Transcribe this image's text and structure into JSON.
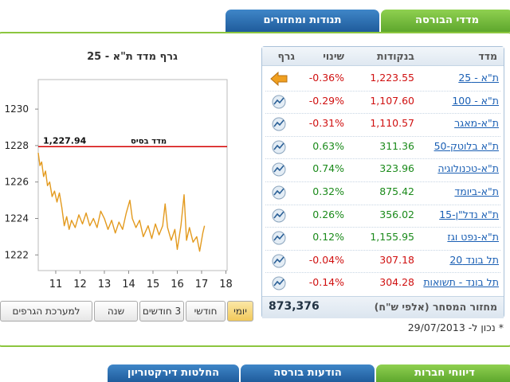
{
  "tabs_top": [
    "מדדי הבורסה",
    "תנודות ומחזורים"
  ],
  "table": {
    "headers": [
      "מדד",
      "בנקודות",
      "שינוי",
      "גרף"
    ],
    "rows": [
      [
        "ת\"א - 25",
        "1,223.55",
        "-0.36%"
      ],
      [
        "ת\"א - 100",
        "1,107.60",
        "-0.29%"
      ],
      [
        "ת\"א-מאגר",
        "1,110.57",
        "-0.31%"
      ],
      [
        "ת\"א בלוטק-50",
        "311.36",
        "0.63%"
      ],
      [
        "ת\"א-טכנולוגיה",
        "323.96",
        "0.74%"
      ],
      [
        "ת\"א-ביומד",
        "875.42",
        "0.32%"
      ],
      [
        "ת\"א נדל\"ן-15",
        "356.02",
        "0.26%"
      ],
      [
        "ת\"א-נפט וגז",
        "1,155.95",
        "0.12%"
      ],
      [
        "תל בונד 20",
        "307.18",
        "-0.04%"
      ],
      [
        "תל בונד - תשואות",
        "304.28",
        "-0.14%"
      ]
    ],
    "footer_label": "מחזור המסחר (אלפי ש\"ח)",
    "footer_value": "873,376"
  },
  "footnote": "* נכון ל- 29/07/2013",
  "chart_data": {
    "type": "line",
    "title": "גרף מדד ת\"א - 25",
    "color": "#e39a1e",
    "x": [
      10.28,
      10.35,
      10.42,
      10.5,
      10.58,
      10.66,
      10.75,
      10.85,
      10.95,
      11.05,
      11.15,
      11.25,
      11.35,
      11.45,
      11.55,
      11.65,
      11.8,
      11.95,
      12.1,
      12.25,
      12.4,
      12.55,
      12.7,
      12.85,
      13.0,
      13.15,
      13.3,
      13.45,
      13.6,
      13.75,
      13.9,
      14.05,
      14.15,
      14.3,
      14.45,
      14.6,
      14.8,
      14.95,
      15.1,
      15.25,
      15.4,
      15.5,
      15.6,
      15.75,
      15.9,
      16.0,
      16.15,
      16.28,
      16.38,
      16.5,
      16.65,
      16.8,
      16.92,
      17.05,
      17.12
    ],
    "values": [
      1227.6,
      1226.9,
      1227.1,
      1226.3,
      1226.6,
      1225.8,
      1226.0,
      1225.2,
      1225.5,
      1224.9,
      1225.4,
      1224.6,
      1223.6,
      1224.1,
      1223.4,
      1223.9,
      1223.5,
      1224.2,
      1223.7,
      1224.3,
      1223.6,
      1224.0,
      1223.5,
      1224.4,
      1224.0,
      1223.4,
      1223.9,
      1223.2,
      1223.8,
      1223.4,
      1224.3,
      1225.0,
      1224.0,
      1223.5,
      1223.9,
      1223.0,
      1223.6,
      1222.9,
      1223.7,
      1223.1,
      1223.6,
      1224.8,
      1223.5,
      1222.8,
      1223.4,
      1222.3,
      1223.6,
      1225.3,
      1222.8,
      1223.5,
      1222.7,
      1223.0,
      1222.2,
      1223.2,
      1223.6
    ],
    "xlim": [
      10.28,
      18.05
    ],
    "ylim": [
      1221.14,
      1231.62
    ],
    "xticks": [
      11,
      12,
      13,
      14,
      15,
      16,
      17,
      18
    ],
    "yticks": [
      1222,
      1224,
      1226,
      1228,
      1230
    ],
    "baseline": {
      "label": "מדד בסיס",
      "value": 1227.94,
      "value_label": "1,227.94",
      "color": "#d40000"
    }
  },
  "range_buttons": [
    "יומי",
    "חודשי",
    "3 חודשים",
    "שנה",
    "למערכת הגרפים"
  ],
  "tabs_bottom": [
    "דיווחי חברות",
    "הודעות בורסה",
    "החלטות דירקטוריון"
  ]
}
